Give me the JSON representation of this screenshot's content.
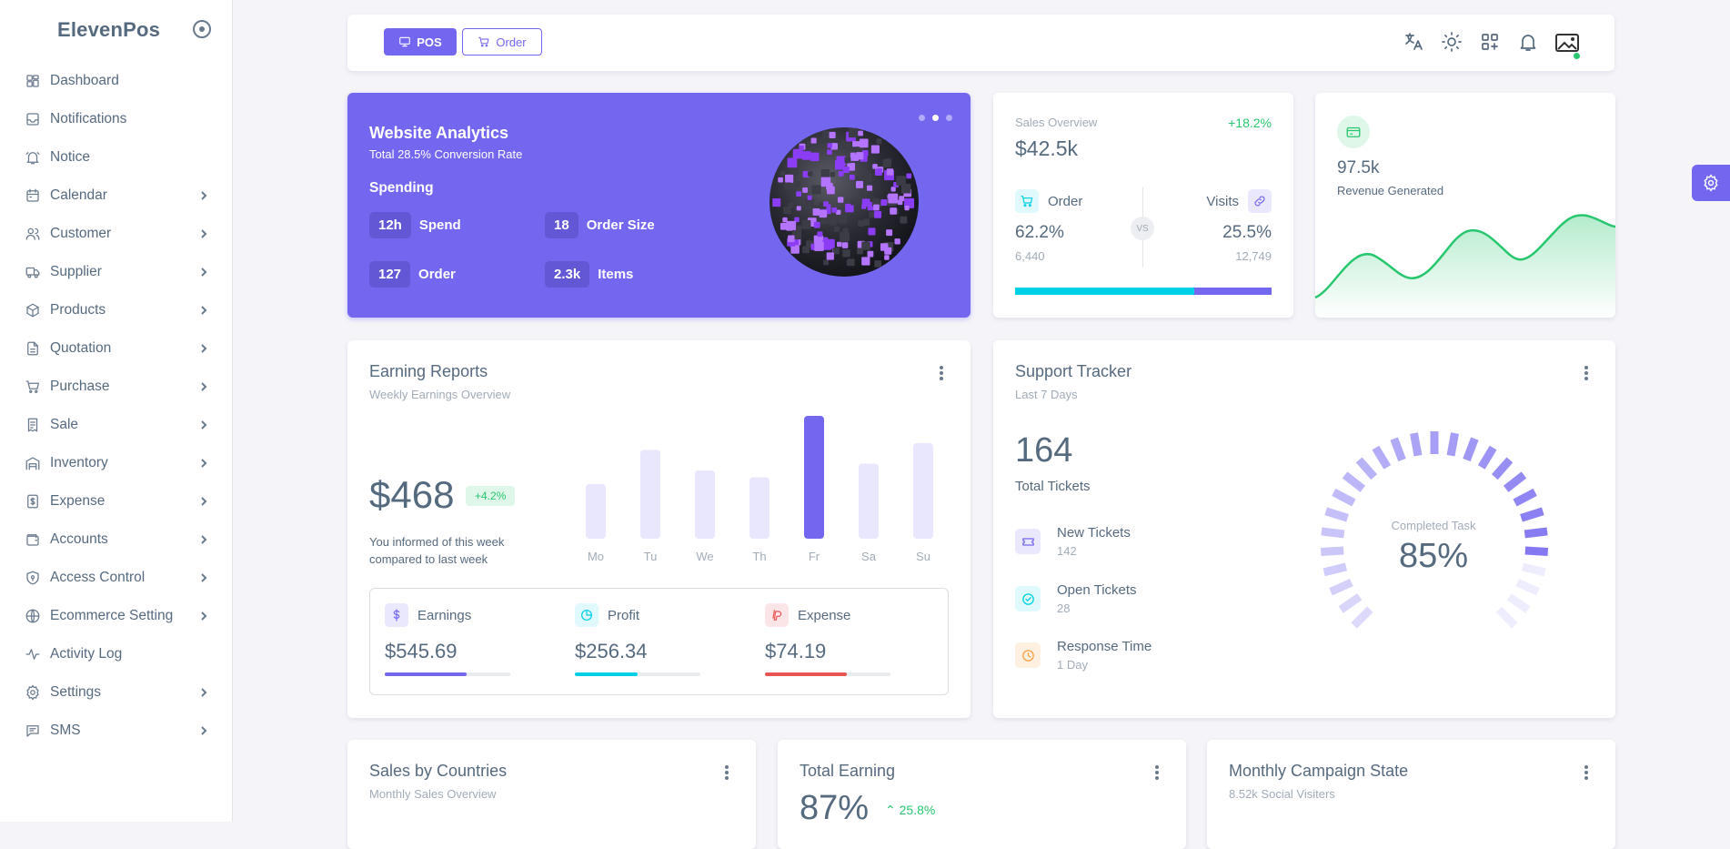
{
  "brand": "ElevenPos",
  "sidebar": {
    "items": [
      {
        "label": "Dashboard",
        "icon": "dashboard-icon",
        "has_children": false
      },
      {
        "label": "Notifications",
        "icon": "inbox-icon",
        "has_children": false
      },
      {
        "label": "Notice",
        "icon": "bell-icon",
        "has_children": false
      },
      {
        "label": "Calendar",
        "icon": "calendar-icon",
        "has_children": true
      },
      {
        "label": "Customer",
        "icon": "users-icon",
        "has_children": true
      },
      {
        "label": "Supplier",
        "icon": "truck-icon",
        "has_children": true
      },
      {
        "label": "Products",
        "icon": "box-icon",
        "has_children": true
      },
      {
        "label": "Quotation",
        "icon": "file-icon",
        "has_children": true
      },
      {
        "label": "Purchase",
        "icon": "cart-icon",
        "has_children": true
      },
      {
        "label": "Sale",
        "icon": "receipt-icon",
        "has_children": true
      },
      {
        "label": "Inventory",
        "icon": "building-icon",
        "has_children": true
      },
      {
        "label": "Expense",
        "icon": "dollar-file-icon",
        "has_children": true
      },
      {
        "label": "Accounts",
        "icon": "wallet-icon",
        "has_children": true
      },
      {
        "label": "Access Control",
        "icon": "shield-icon",
        "has_children": true
      },
      {
        "label": "Ecommerce Setting",
        "icon": "globe-icon",
        "has_children": true
      },
      {
        "label": "Activity Log",
        "icon": "activity-icon",
        "has_children": false
      },
      {
        "label": "Settings",
        "icon": "gear-icon",
        "has_children": true
      },
      {
        "label": "SMS",
        "icon": "message-icon",
        "has_children": true
      }
    ]
  },
  "navbar": {
    "pos_label": "POS",
    "order_label": "Order",
    "icons": [
      "translate-icon",
      "sun-icon",
      "grid-plus-icon",
      "bell-icon",
      "avatar"
    ]
  },
  "analytics": {
    "title": "Website Analytics",
    "subtitle": "Total 28.5% Conversion Rate",
    "section": "Spending",
    "stats": [
      {
        "value": "12h",
        "label": "Spend"
      },
      {
        "value": "18",
        "label": "Order Size"
      },
      {
        "value": "127",
        "label": "Order"
      },
      {
        "value": "2.3k",
        "label": "Items"
      }
    ],
    "active_slide": 2
  },
  "sales_overview": {
    "label": "Sales Overview",
    "growth": "+18.2%",
    "amount": "$42.5k",
    "order_label": "Order",
    "visits_label": "Visits",
    "vs": "VS",
    "order_pct": "62.2%",
    "order_count": "6,440",
    "visits_pct": "25.5%",
    "visits_count": "12,749",
    "order_share": 0.7
  },
  "revenue": {
    "value": "97.5k",
    "label": "Revenue Generated",
    "accent": "#28c76f"
  },
  "earning_reports": {
    "title": "Earning Reports",
    "subtitle": "Weekly Earnings Overview",
    "amount": "$468",
    "badge": "+4.2%",
    "note": "You informed of this week compared to last week",
    "summary": [
      {
        "label": "Earnings",
        "amount": "$545.69",
        "color": "#7367f0",
        "progress": 0.65,
        "icon": "dollar-icon"
      },
      {
        "label": "Profit",
        "amount": "$256.34",
        "color": "#00cfe8",
        "progress": 0.5,
        "icon": "pie-chart-icon"
      },
      {
        "label": "Expense",
        "amount": "$74.19",
        "color": "#ea5455",
        "progress": 0.65,
        "icon": "paypal-icon"
      }
    ]
  },
  "chart_data": {
    "type": "bar",
    "categories": [
      "Mo",
      "Tu",
      "We",
      "Th",
      "Fr",
      "Sa",
      "Su"
    ],
    "values": [
      40,
      65,
      50,
      45,
      90,
      55,
      70
    ],
    "highlight_index": 4,
    "bar_color": "#e9e7fd",
    "highlight_color": "#7367f0",
    "ylim": [
      0,
      100
    ]
  },
  "support_tracker": {
    "title": "Support Tracker",
    "subtitle": "Last 7 Days",
    "total": "164",
    "total_label": "Total Tickets",
    "tickets": [
      {
        "label": "New Tickets",
        "value": "142",
        "icon": "ticket-icon",
        "color": "#7367f0",
        "bg": "#eae8fd"
      },
      {
        "label": "Open Tickets",
        "value": "28",
        "icon": "check-circle-icon",
        "color": "#00cfe8",
        "bg": "#e0f9fc"
      },
      {
        "label": "Response Time",
        "value": "1 Day",
        "icon": "clock-icon",
        "color": "#ff9f43",
        "bg": "#fff0e1"
      }
    ],
    "gauge_label": "Completed Task",
    "gauge_value": "85%",
    "gauge_fraction": 0.85
  },
  "bottom_cards": [
    {
      "title": "Sales by Countries",
      "subtitle": "Monthly Sales Overview"
    },
    {
      "title": "Total Earning",
      "value": "87%",
      "change": "25.8%"
    },
    {
      "title": "Monthly Campaign State",
      "subtitle": "8.52k Social Visiters"
    }
  ]
}
